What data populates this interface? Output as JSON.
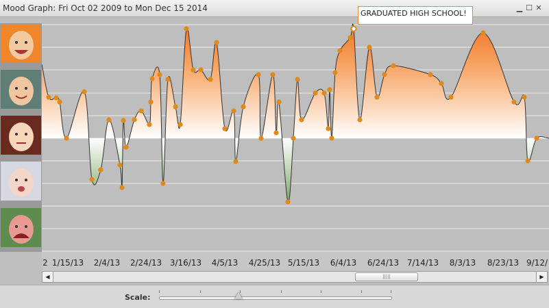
{
  "window": {
    "title": "Mood Graph: Fri Oct 02 2009 to Mon Dec 15 2014",
    "minimize_glyph": "▁",
    "maximize_glyph": "☐",
    "close_glyph": "✕"
  },
  "faces": [
    {
      "name": "ecstatic-face"
    },
    {
      "name": "happy-face"
    },
    {
      "name": "neutral-face"
    },
    {
      "name": "messy-face"
    },
    {
      "name": "crying-face"
    }
  ],
  "annotation": {
    "text": "GRADUATED HIGH SCHOOL!"
  },
  "x_axis_ticks": [
    "2",
    "1/15/13",
    "2/4/13",
    "2/24/13",
    "3/16/13",
    "4/5/13",
    "4/25/13",
    "5/15/13",
    "6/4/13",
    "6/24/13",
    "7/14/13",
    "8/3/13",
    "8/23/13",
    "9/12/"
  ],
  "scrollbar": {
    "left_arrow": "◀",
    "right_arrow": "▶",
    "thumb_grip": "|||||"
  },
  "scale": {
    "label": "Scale:"
  },
  "colors": {
    "positive_fill": "#f07a2a",
    "negative_fill": "#6e9a5c",
    "point": "#e08a1c",
    "curve": "#333333"
  }
}
